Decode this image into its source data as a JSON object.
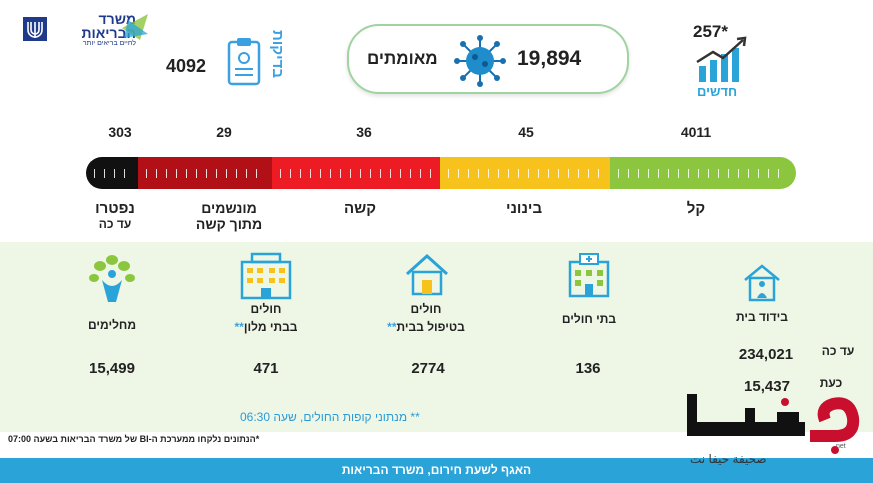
{
  "header": {
    "ministry_name_line1": "משרד",
    "ministry_name_line2": "הבריאות",
    "ministry_tagline": "לחיים בריאים יותר",
    "tests_value": "4092",
    "tests_label": "בדיקות",
    "confirmed_value": "19,894",
    "confirmed_label": "מאומתים",
    "new_value": "257*",
    "new_label": "חדשים"
  },
  "severity": {
    "counts": {
      "mild": "4011",
      "moderate": "45",
      "serious": "36",
      "ventilated": "29",
      "deceased": "303"
    },
    "labels": {
      "mild": "קל",
      "moderate": "בינוני",
      "serious": "קשה",
      "ventilated_line1": "מונשמים",
      "ventilated_line2": "מתוך קשה",
      "deceased_line1": "נפטרו",
      "deceased_line2": "עד כה"
    },
    "colors": {
      "mild": "#8cc63f",
      "moderate": "#f7c21b",
      "serious": "#ed1c24",
      "ventilated": "#b11116",
      "deceased": "#111111"
    }
  },
  "categories": {
    "home_isolation": {
      "label": "בידוד בית",
      "so_far_label": "עד כה",
      "so_far_value": "234,021",
      "now_label": "כעת",
      "now_value": "15,437"
    },
    "hospitals": {
      "label": "בתי חולים",
      "value": "136"
    },
    "home_care": {
      "label_line1": "חולים",
      "label_line2": "בטיפול בבית",
      "stars": "**",
      "value": "2774"
    },
    "hotels": {
      "label_line1": "חולים",
      "label_line2": "בבתי מלון",
      "stars": "**",
      "value": "471"
    },
    "recovered": {
      "label": "מחלימים",
      "value": "15,499"
    }
  },
  "footnotes": {
    "hmo_note": "** מנתוני קופות החולים, שעה 06:30",
    "bi_note": "*הנתונים נלקחו ממערכת ה-BI של משרד הבריאות בשעה 07:00"
  },
  "footer": {
    "text": "האגף לשעת חירום, משרד הבריאות"
  },
  "watermark": {
    "logo_text": "حيفا",
    "subtitle": "صحيفة حيفا نت",
    "tiny": "net"
  }
}
